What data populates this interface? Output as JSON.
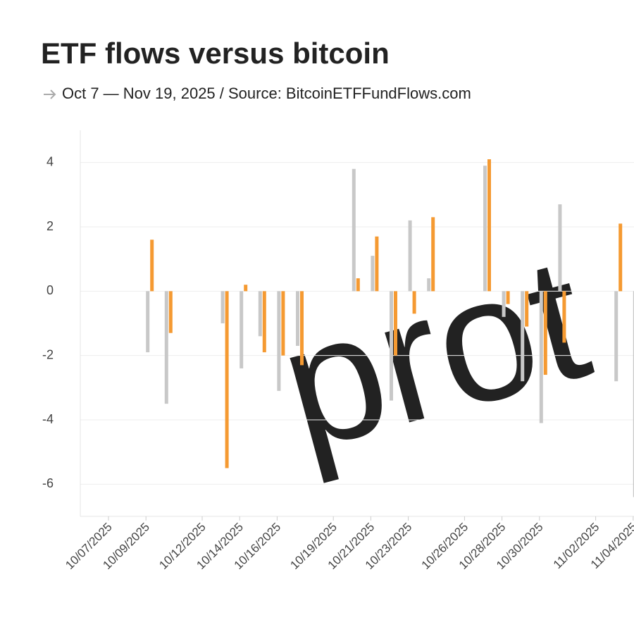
{
  "chart_data": {
    "type": "bar",
    "title": "ETF flows versus bitcoin",
    "subtitle": "Oct 7 — Nov 19, 2025 / Source: BitcoinETFFundFlows.com",
    "watermark": "prot",
    "categories": [
      "10/07/2025",
      null,
      "10/09/2025",
      null,
      null,
      "10/12/2025",
      null,
      "10/14/2025",
      null,
      "10/16/2025",
      null,
      null,
      "10/19/2025",
      null,
      "10/21/2025",
      null,
      "10/23/2025",
      null,
      null,
      "10/26/2025",
      null,
      "10/28/2025",
      null,
      "10/30/2025",
      null,
      null,
      "11/02/2025",
      null,
      "11/04/2025"
    ],
    "series": [
      {
        "color": "#c8c8c8",
        "values": [
          null,
          null,
          -1.9,
          -3.5,
          null,
          null,
          -1.0,
          -2.4,
          -1.4,
          -3.1,
          -1.7,
          null,
          null,
          3.8,
          1.1,
          -3.4,
          2.2,
          0.4,
          null,
          null,
          3.9,
          -0.8,
          -2.8,
          -4.1,
          2.7,
          null,
          null,
          -2.8,
          -6.4
        ]
      },
      {
        "color": "#f59a32",
        "values": [
          null,
          null,
          1.6,
          -1.3,
          null,
          null,
          -5.5,
          0.2,
          -1.9,
          -2.0,
          -2.3,
          null,
          null,
          0.4,
          1.7,
          -2.0,
          -0.7,
          2.3,
          null,
          null,
          4.1,
          -0.4,
          -1.1,
          -2.6,
          -1.6,
          null,
          null,
          2.1,
          null
        ]
      }
    ],
    "ylim": [
      -7,
      5
    ],
    "yticks": [
      -6,
      -4,
      -2,
      0,
      2,
      4
    ],
    "grid": true
  }
}
